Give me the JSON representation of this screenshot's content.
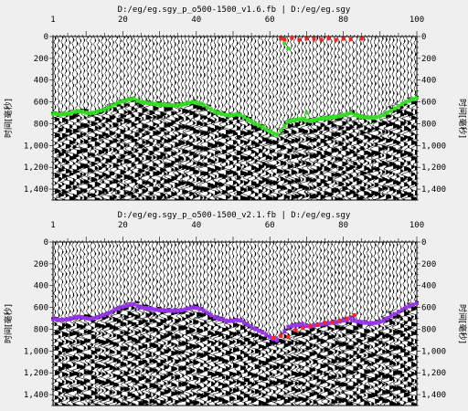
{
  "panels": [
    {
      "title": "D:/eg/eg.sgy_p_o500-1500_v1.6.fb | D:/eg/eg.sgy",
      "ylabel_left": "时间[毫秒]",
      "ylabel_right": "时间[毫秒]",
      "pick_color": "#33dd22",
      "outlier_color": "#ff2020",
      "x_ticks": [
        "1",
        "20",
        "40",
        "60",
        "80",
        "100"
      ],
      "y_ticks": [
        "0",
        "200",
        "400",
        "600",
        "800",
        "1,000",
        "1,200",
        "1,400"
      ]
    },
    {
      "title": "D:/eg/eg.sgy_p_o500-1500_v2.1.fb | D:/eg/eg.sgy",
      "ylabel_left": "时间[毫秒]",
      "ylabel_right": "时间[毫秒]",
      "pick_color": "#9933ee",
      "outlier_color": "#ff2020",
      "x_ticks": [
        "1",
        "20",
        "40",
        "60",
        "80",
        "100"
      ],
      "y_ticks": [
        "0",
        "200",
        "400",
        "600",
        "800",
        "1,000",
        "1,200",
        "1,400"
      ]
    }
  ],
  "traces": {
    "x_range": [
      1,
      100
    ],
    "y_range_ms": [
      0,
      1500
    ],
    "picks_ms": [
      705,
      710,
      715,
      712,
      708,
      700,
      690,
      685,
      690,
      700,
      705,
      700,
      690,
      680,
      670,
      655,
      640,
      620,
      605,
      595,
      585,
      575,
      570,
      590,
      600,
      605,
      610,
      615,
      620,
      625,
      625,
      630,
      630,
      632,
      630,
      625,
      618,
      610,
      600,
      605,
      615,
      630,
      650,
      670,
      690,
      700,
      710,
      720,
      725,
      720,
      715,
      720,
      740,
      760,
      780,
      800,
      815,
      830,
      850,
      870,
      890,
      900,
      860,
      820,
      780,
      770,
      765,
      760,
      755,
      770,
      775,
      765,
      760,
      755,
      750,
      745,
      740,
      735,
      730,
      720,
      715,
      700,
      720,
      730,
      735,
      740,
      745,
      745,
      740,
      730,
      720,
      700,
      680,
      660,
      640,
      620,
      600,
      590,
      575,
      560
    ],
    "outlier_picks_top": [
      [
        63,
        20
      ],
      [
        64,
        25
      ],
      [
        66,
        15
      ],
      [
        68,
        30
      ],
      [
        70,
        20
      ],
      [
        72,
        22
      ],
      [
        74,
        28
      ],
      [
        76,
        18
      ],
      [
        78,
        30
      ],
      [
        80,
        22
      ],
      [
        82,
        25
      ],
      [
        85,
        20
      ]
    ],
    "outlier_picks_bottom": [
      [
        61,
        880
      ],
      [
        63,
        860
      ],
      [
        65,
        870
      ],
      [
        67,
        810
      ],
      [
        69,
        790
      ],
      [
        71,
        770
      ],
      [
        73,
        760
      ],
      [
        75,
        740
      ],
      [
        77,
        735
      ],
      [
        79,
        720
      ],
      [
        81,
        700
      ],
      [
        83,
        670
      ]
    ]
  }
}
